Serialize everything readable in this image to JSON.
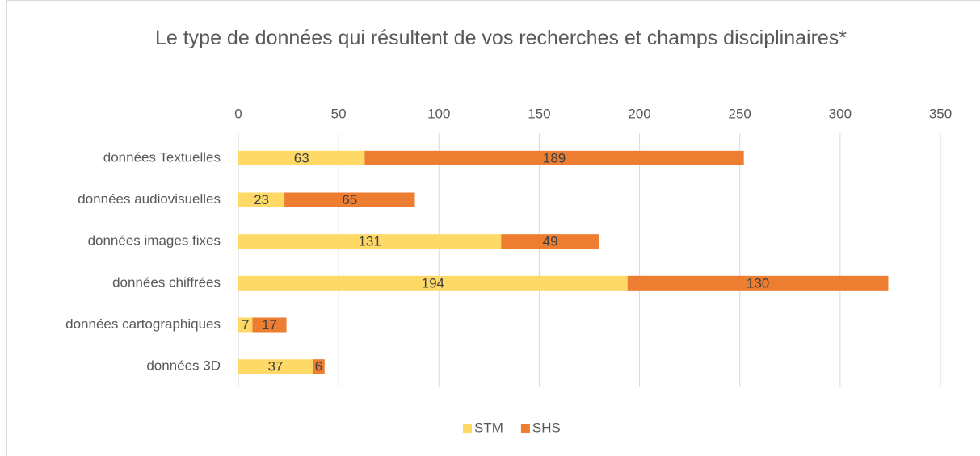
{
  "chart_data": {
    "type": "stacked-bar-horizontal",
    "title": "Le type de données qui résultent de vos recherches et champs disciplinaires*",
    "categories": [
      "données Textuelles",
      "données audiovisuelles",
      "données images fixes",
      "données chiffrées",
      "données cartographiques",
      "données 3D"
    ],
    "series": [
      {
        "name": "STM",
        "color": "#ffd966",
        "values": [
          63,
          23,
          131,
          194,
          7,
          37
        ]
      },
      {
        "name": "SHS",
        "color": "#ed7d31",
        "values": [
          189,
          65,
          49,
          130,
          17,
          6
        ]
      }
    ],
    "xlim": [
      0,
      350
    ],
    "xticks": [
      0,
      50,
      100,
      150,
      200,
      250,
      300,
      350
    ],
    "grid": true,
    "legend": "bottom"
  }
}
